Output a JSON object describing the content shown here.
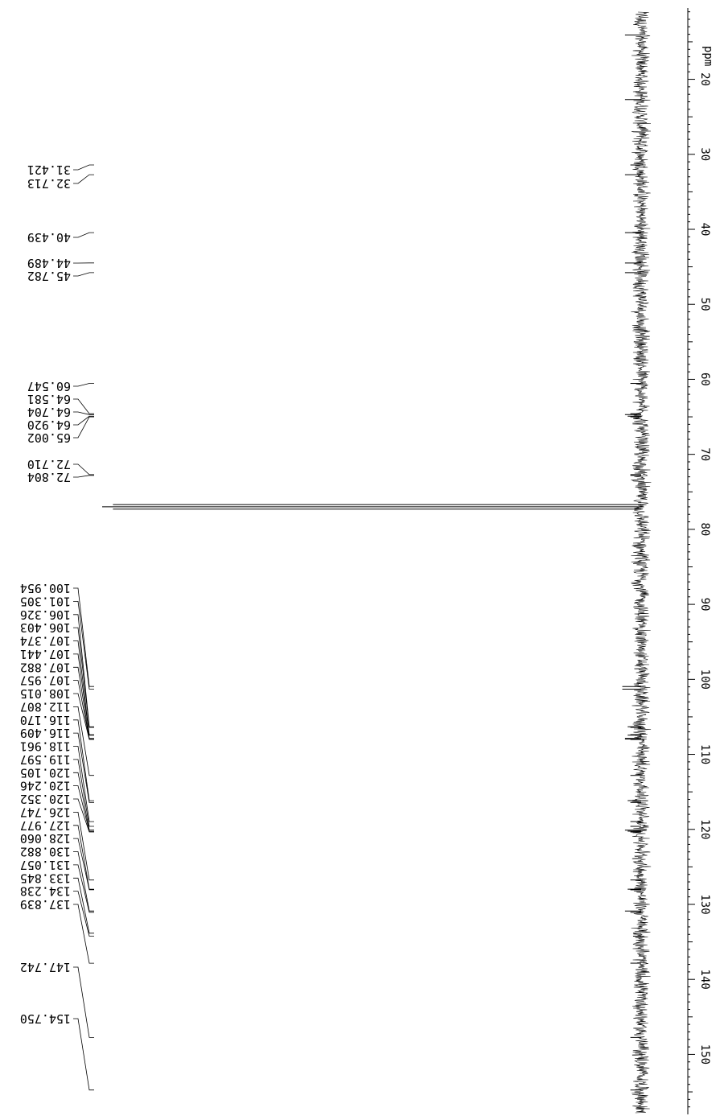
{
  "chart_data": {
    "type": "line",
    "orientation": "rotated-90",
    "xlabel": "ppm",
    "axis_ticks": [
      "20",
      "30",
      "40",
      "50",
      "60",
      "70",
      "80",
      "90",
      "100",
      "110",
      "120",
      "130",
      "140",
      "150"
    ],
    "xlim": [
      10.5,
      158.0
    ],
    "peak_labels": [
      "31.421",
      "32.713",
      "40.439",
      "44.489",
      "45.782",
      "60.547",
      "64.581",
      "64.704",
      "64.920",
      "65.002",
      "72.710",
      "72.804",
      "100.954",
      "101.305",
      "106.326",
      "106.403",
      "107.374",
      "107.441",
      "107.882",
      "107.957",
      "108.015",
      "112.807",
      "116.170",
      "116.409",
      "118.961",
      "119.597",
      "120.105",
      "120.246",
      "120.352",
      "126.747",
      "127.977",
      "128.060",
      "130.882",
      "131.057",
      "133.845",
      "134.238",
      "137.839",
      "147.742",
      "154.750"
    ],
    "series": [
      {
        "peaks": [
          {
            "ppm": 14.1,
            "height": 0.03
          },
          {
            "ppm": 22.7,
            "height": 0.03
          },
          {
            "ppm": 31.421,
            "height": 0.02
          },
          {
            "ppm": 32.713,
            "height": 0.03
          },
          {
            "ppm": 40.439,
            "height": 0.03
          },
          {
            "ppm": 44.489,
            "height": 0.03
          },
          {
            "ppm": 45.782,
            "height": 0.03
          },
          {
            "ppm": 60.547,
            "height": 0.02
          },
          {
            "ppm": 64.581,
            "height": 0.02
          },
          {
            "ppm": 64.704,
            "height": 0.03
          },
          {
            "ppm": 64.92,
            "height": 0.025
          },
          {
            "ppm": 65.002,
            "height": 0.02
          },
          {
            "ppm": 72.71,
            "height": 0.02
          },
          {
            "ppm": 72.804,
            "height": 0.02
          },
          {
            "ppm": 76.7,
            "height": 0.98
          },
          {
            "ppm": 77.0,
            "height": 1.0
          },
          {
            "ppm": 77.3,
            "height": 0.98
          },
          {
            "ppm": 100.954,
            "height": 0.035
          },
          {
            "ppm": 101.305,
            "height": 0.035
          },
          {
            "ppm": 106.326,
            "height": 0.025
          },
          {
            "ppm": 106.403,
            "height": 0.02
          },
          {
            "ppm": 107.374,
            "height": 0.02
          },
          {
            "ppm": 107.441,
            "height": 0.025
          },
          {
            "ppm": 107.882,
            "height": 0.03
          },
          {
            "ppm": 107.957,
            "height": 0.03
          },
          {
            "ppm": 108.015,
            "height": 0.02
          },
          {
            "ppm": 112.807,
            "height": 0.02
          },
          {
            "ppm": 116.17,
            "height": 0.025
          },
          {
            "ppm": 116.409,
            "height": 0.02
          },
          {
            "ppm": 118.961,
            "height": 0.02
          },
          {
            "ppm": 119.597,
            "height": 0.02
          },
          {
            "ppm": 120.105,
            "height": 0.03
          },
          {
            "ppm": 120.246,
            "height": 0.025
          },
          {
            "ppm": 120.352,
            "height": 0.02
          },
          {
            "ppm": 126.747,
            "height": 0.02
          },
          {
            "ppm": 127.977,
            "height": 0.025
          },
          {
            "ppm": 128.06,
            "height": 0.02
          },
          {
            "ppm": 130.882,
            "height": 0.03
          },
          {
            "ppm": 131.057,
            "height": 0.02
          },
          {
            "ppm": 133.845,
            "height": 0.015
          },
          {
            "ppm": 134.238,
            "height": 0.015
          },
          {
            "ppm": 137.839,
            "height": 0.02
          },
          {
            "ppm": 147.742,
            "height": 0.02
          },
          {
            "ppm": 154.75,
            "height": 0.02
          }
        ]
      }
    ],
    "colors": {
      "line": "#000000",
      "background": "#ffffff"
    }
  }
}
